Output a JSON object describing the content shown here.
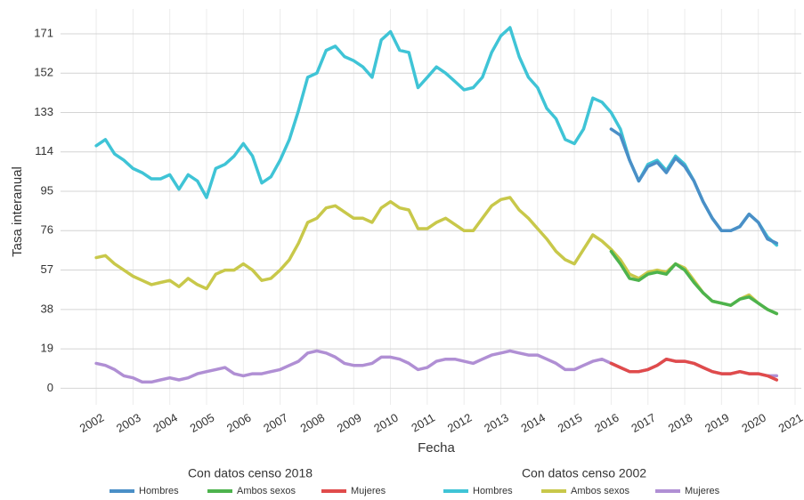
{
  "chart_data": {
    "type": "line",
    "x_label": "Fecha",
    "y_label": "Tasa interanual",
    "x": [
      2002,
      2002.25,
      2002.5,
      2002.75,
      2003,
      2003.25,
      2003.5,
      2003.75,
      2004,
      2004.25,
      2004.5,
      2004.75,
      2005,
      2005.25,
      2005.5,
      2005.75,
      2006,
      2006.25,
      2006.5,
      2006.75,
      2007,
      2007.25,
      2007.5,
      2007.75,
      2008,
      2008.25,
      2008.5,
      2008.75,
      2009,
      2009.25,
      2009.5,
      2009.75,
      2010,
      2010.25,
      2010.5,
      2010.75,
      2011,
      2011.25,
      2011.5,
      2011.75,
      2012,
      2012.25,
      2012.5,
      2012.75,
      2013,
      2013.25,
      2013.5,
      2013.75,
      2014,
      2014.25,
      2014.5,
      2014.75,
      2015,
      2015.25,
      2015.5,
      2015.75,
      2016,
      2016.25,
      2016.5,
      2016.75,
      2017,
      2017.25,
      2017.5,
      2017.75,
      2018,
      2018.25,
      2018.5,
      2018.75,
      2019,
      2019.25,
      2019.5,
      2019.75,
      2020,
      2020.25,
      2020.5
    ],
    "series": [
      {
        "name": "Hombres",
        "group": "Con datos censo 2018",
        "color": "#4a8fc7",
        "values": [
          null,
          null,
          null,
          null,
          null,
          null,
          null,
          null,
          null,
          null,
          null,
          null,
          null,
          null,
          null,
          null,
          null,
          null,
          null,
          null,
          null,
          null,
          null,
          null,
          null,
          null,
          null,
          null,
          null,
          null,
          null,
          null,
          null,
          null,
          null,
          null,
          null,
          null,
          null,
          null,
          null,
          null,
          null,
          null,
          null,
          null,
          null,
          null,
          null,
          null,
          null,
          null,
          null,
          null,
          null,
          null,
          125,
          122,
          110,
          100,
          107,
          109,
          104,
          111,
          107,
          100,
          90,
          82,
          76,
          76,
          78,
          84,
          80,
          72,
          70
        ]
      },
      {
        "name": "Ambos sexos",
        "group": "Con datos censo 2018",
        "color": "#4db34d",
        "values": [
          null,
          null,
          null,
          null,
          null,
          null,
          null,
          null,
          null,
          null,
          null,
          null,
          null,
          null,
          null,
          null,
          null,
          null,
          null,
          null,
          null,
          null,
          null,
          null,
          null,
          null,
          null,
          null,
          null,
          null,
          null,
          null,
          null,
          null,
          null,
          null,
          null,
          null,
          null,
          null,
          null,
          null,
          null,
          null,
          null,
          null,
          null,
          null,
          null,
          null,
          null,
          null,
          null,
          null,
          null,
          null,
          66,
          60,
          53,
          52,
          55,
          56,
          55,
          60,
          57,
          51,
          46,
          42,
          41,
          40,
          43,
          44,
          41,
          38,
          36
        ]
      },
      {
        "name": "Mujeres",
        "group": "Con datos censo 2018",
        "color": "#e04b4b",
        "values": [
          null,
          null,
          null,
          null,
          null,
          null,
          null,
          null,
          null,
          null,
          null,
          null,
          null,
          null,
          null,
          null,
          null,
          null,
          null,
          null,
          null,
          null,
          null,
          null,
          null,
          null,
          null,
          null,
          null,
          null,
          null,
          null,
          null,
          null,
          null,
          null,
          null,
          null,
          null,
          null,
          null,
          null,
          null,
          null,
          null,
          null,
          null,
          null,
          null,
          null,
          null,
          null,
          null,
          null,
          null,
          null,
          12,
          10,
          8,
          8,
          9,
          11,
          14,
          13,
          13,
          12,
          10,
          8,
          7,
          7,
          8,
          7,
          7,
          6,
          4
        ]
      },
      {
        "name": "Hombres",
        "group": "Con datos censo 2002",
        "color": "#3fc4d6",
        "values": [
          117,
          120,
          113,
          110,
          106,
          104,
          101,
          101,
          103,
          96,
          103,
          100,
          92,
          106,
          108,
          112,
          118,
          112,
          99,
          102,
          110,
          120,
          134,
          150,
          152,
          163,
          165,
          160,
          158,
          155,
          150,
          168,
          172,
          163,
          162,
          145,
          150,
          155,
          152,
          148,
          144,
          145,
          150,
          162,
          170,
          174,
          160,
          150,
          145,
          135,
          130,
          120,
          118,
          125,
          140,
          138,
          133,
          125,
          110,
          100,
          108,
          110,
          105,
          112,
          108,
          100,
          90,
          82,
          76,
          76,
          78,
          84,
          80,
          73,
          69
        ]
      },
      {
        "name": "Ambos sexos",
        "group": "Con datos censo 2002",
        "color": "#c8c84a",
        "values": [
          63,
          64,
          60,
          57,
          54,
          52,
          50,
          51,
          52,
          49,
          53,
          50,
          48,
          55,
          57,
          57,
          60,
          57,
          52,
          53,
          57,
          62,
          70,
          80,
          82,
          87,
          88,
          85,
          82,
          82,
          80,
          87,
          90,
          87,
          86,
          77,
          77,
          80,
          82,
          79,
          76,
          76,
          82,
          88,
          91,
          92,
          86,
          82,
          77,
          72,
          66,
          62,
          60,
          67,
          74,
          71,
          67,
          62,
          55,
          53,
          56,
          57,
          56,
          60,
          58,
          52,
          46,
          42,
          41,
          40,
          43,
          45,
          41,
          38,
          36
        ]
      },
      {
        "name": "Mujeres",
        "group": "Con datos censo 2002",
        "color": "#b08fd4",
        "values": [
          12,
          11,
          9,
          6,
          5,
          3,
          3,
          4,
          5,
          4,
          5,
          7,
          8,
          9,
          10,
          7,
          6,
          7,
          7,
          8,
          9,
          11,
          13,
          17,
          18,
          17,
          15,
          12,
          11,
          11,
          12,
          15,
          15,
          14,
          12,
          9,
          10,
          13,
          14,
          14,
          13,
          12,
          14,
          16,
          17,
          18,
          17,
          16,
          16,
          14,
          12,
          9,
          9,
          11,
          13,
          14,
          12,
          10,
          8,
          8,
          9,
          11,
          14,
          13,
          13,
          12,
          10,
          8,
          7,
          7,
          8,
          7,
          7,
          6,
          6
        ]
      }
    ],
    "xlim": [
      2001.03,
      2021.17
    ],
    "xticks": [
      2002,
      2003,
      2004,
      2005,
      2006,
      2007,
      2008,
      2009,
      2010,
      2011,
      2012,
      2013,
      2014,
      2015,
      2016,
      2017,
      2018,
      2019,
      2020,
      2021
    ],
    "ylim": [
      -8,
      183
    ],
    "yticks": [
      0,
      19,
      38,
      57,
      76,
      95,
      114,
      133,
      152,
      171
    ],
    "grid": true,
    "legend": "bottom"
  }
}
